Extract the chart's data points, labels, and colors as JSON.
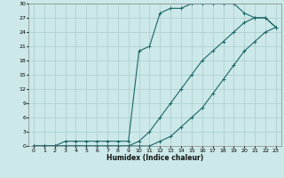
{
  "xlabel": "Humidex (Indice chaleur)",
  "bg_color": "#cce8e8",
  "grid_color": "#aacccc",
  "line_color": "#1a6666",
  "xlim": [
    -0.5,
    23.5
  ],
  "ylim": [
    0,
    30
  ],
  "xticks": [
    0,
    1,
    2,
    3,
    4,
    5,
    6,
    7,
    8,
    9,
    10,
    11,
    12,
    13,
    14,
    15,
    16,
    17,
    18,
    19,
    20,
    21,
    22,
    23
  ],
  "yticks": [
    0,
    3,
    6,
    9,
    12,
    15,
    18,
    21,
    24,
    27,
    30
  ],
  "line1_x": [
    0,
    1,
    2,
    3,
    4,
    5,
    6,
    7,
    8,
    9,
    10,
    11,
    12,
    13,
    14,
    15,
    16,
    17,
    18,
    19,
    20,
    21,
    22,
    23
  ],
  "line1_y": [
    0,
    0,
    0,
    0,
    0,
    0,
    0,
    0,
    0,
    0,
    0,
    0,
    1,
    2,
    4,
    6,
    8,
    11,
    14,
    17,
    20,
    22,
    24,
    25
  ],
  "line2_x": [
    0,
    1,
    2,
    3,
    4,
    5,
    6,
    7,
    8,
    9,
    10,
    11,
    12,
    13,
    14,
    15,
    16,
    17,
    18,
    19,
    20,
    21,
    22,
    23
  ],
  "line2_y": [
    0,
    0,
    0,
    1,
    1,
    1,
    1,
    1,
    1,
    1,
    20,
    21,
    28,
    29,
    29,
    30,
    30,
    30,
    30,
    30,
    28,
    27,
    27,
    25
  ],
  "line3_x": [
    0,
    1,
    2,
    3,
    4,
    5,
    6,
    7,
    8,
    9,
    10,
    11,
    12,
    13,
    14,
    15,
    16,
    17,
    18,
    19,
    20,
    21,
    22,
    23
  ],
  "line3_y": [
    0,
    0,
    0,
    0,
    0,
    0,
    0,
    0,
    0,
    0,
    1,
    3,
    6,
    9,
    12,
    15,
    18,
    20,
    22,
    24,
    26,
    27,
    27,
    25
  ]
}
